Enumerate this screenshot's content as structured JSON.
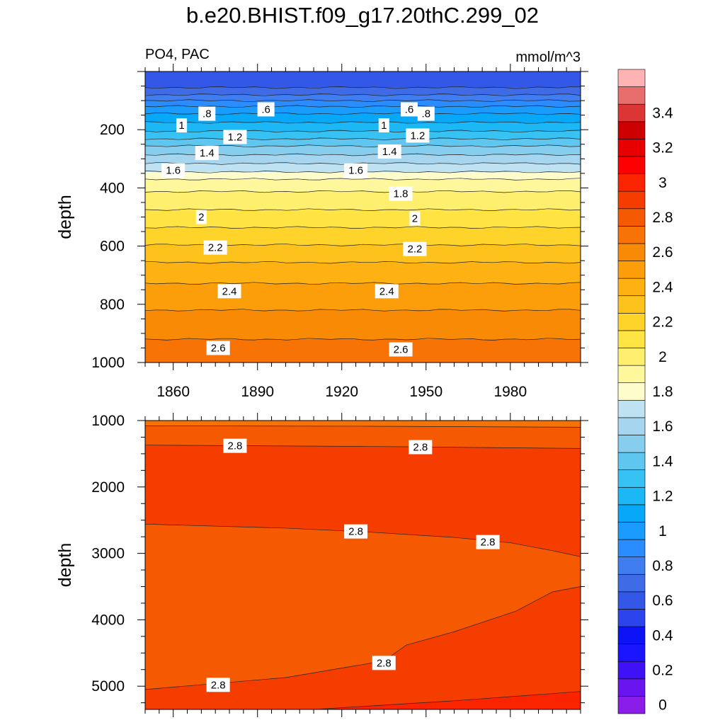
{
  "title": "b.e20.BHIST.f09_g17.20thC.299_02",
  "chart_data": {
    "type": "contour",
    "title": "b.e20.BHIST.f09_g17.20thC.299_02",
    "variable": "PO4, PAC",
    "units": "mmol/m^3",
    "x_ticks": [
      "1860",
      "1890",
      "1920",
      "1950",
      "1980"
    ],
    "x_tick_values": [
      1860,
      1890,
      1920,
      1950,
      1980
    ],
    "xlim": [
      1850,
      2005
    ],
    "colorbar": {
      "labels": [
        "0",
        "0.2",
        "0.4",
        "0.6",
        "0.8",
        "1",
        "1.2",
        "1.4",
        "1.6",
        "1.8",
        "2",
        "2.2",
        "2.4",
        "2.6",
        "2.8",
        "3",
        "3.2",
        "3.4"
      ],
      "label_values": [
        0,
        0.2,
        0.4,
        0.6,
        0.8,
        1.0,
        1.2,
        1.4,
        1.6,
        1.8,
        2.0,
        2.2,
        2.4,
        2.6,
        2.8,
        3.0,
        3.2,
        3.4
      ],
      "levels": [
        0,
        0.1,
        0.2,
        0.3,
        0.4,
        0.5,
        0.6,
        0.7,
        0.8,
        0.9,
        1.0,
        1.1,
        1.2,
        1.3,
        1.4,
        1.5,
        1.6,
        1.7,
        1.8,
        1.9,
        2.0,
        2.1,
        2.2,
        2.3,
        2.4,
        2.5,
        2.6,
        2.7,
        2.8,
        2.9,
        3.0,
        3.1,
        3.2,
        3.3,
        3.4,
        3.5
      ],
      "colors": [
        "#8a1ee8",
        "#6a15f0",
        "#3f12f6",
        "#1a14ff",
        "#0c14f6",
        "#2c44ec",
        "#3358e8",
        "#3f6be6",
        "#3f7df0",
        "#2a8cff",
        "#1a9cff",
        "#08a8f8",
        "#1cb8f6",
        "#36c2f2",
        "#5ec6ef",
        "#86cdee",
        "#a6d6ef",
        "#bfe2f2",
        "#fffccc",
        "#fff79c",
        "#ffef6e",
        "#ffe444",
        "#fed32a",
        "#fec21d",
        "#fdb112",
        "#fb9e0a",
        "#f98a06",
        "#f87305",
        "#f55a02",
        "#f63d00",
        "#fb2400",
        "#ff0000",
        "#e80000",
        "#cc0000",
        "#dc3535",
        "#e86e6e",
        "#ffb3b3"
      ]
    },
    "panels": [
      {
        "name": "upper",
        "ylabel": "depth",
        "ylim": [
          0,
          1000
        ],
        "inverted": true,
        "y_ticks": [
          "200",
          "400",
          "600",
          "800",
          "1000"
        ],
        "y_tick_values": [
          200,
          400,
          600,
          800,
          1000
        ],
        "profile_depth": [
          0,
          40,
          70,
          100,
          130,
          160,
          190,
          220,
          250,
          280,
          310,
          340,
          370,
          400,
          450,
          500,
          560,
          620,
          680,
          760,
          840,
          920,
          1000
        ],
        "profile_value": [
          0.5,
          0.55,
          0.65,
          0.8,
          0.95,
          1.05,
          1.15,
          1.25,
          1.38,
          1.48,
          1.58,
          1.68,
          1.8,
          1.88,
          1.96,
          2.04,
          2.14,
          2.24,
          2.34,
          2.44,
          2.52,
          2.6,
          2.64
        ],
        "contour_labels": [
          {
            "text": ".6",
            "year": 1893,
            "depth": 130
          },
          {
            "text": ".6",
            "year": 1944,
            "depth": 130
          },
          {
            "text": ".8",
            "year": 1872,
            "depth": 145
          },
          {
            "text": ".8",
            "year": 1950,
            "depth": 145
          },
          {
            "text": "1",
            "year": 1863,
            "depth": 185
          },
          {
            "text": "1",
            "year": 1935,
            "depth": 185
          },
          {
            "text": "1.2",
            "year": 1882,
            "depth": 225
          },
          {
            "text": "1.2",
            "year": 1947,
            "depth": 220
          },
          {
            "text": "1.4",
            "year": 1872,
            "depth": 280
          },
          {
            "text": "1.4",
            "year": 1937,
            "depth": 275
          },
          {
            "text": "1.6",
            "year": 1860,
            "depth": 340
          },
          {
            "text": "1.6",
            "year": 1925,
            "depth": 340
          },
          {
            "text": "1.8",
            "year": 1941,
            "depth": 420
          },
          {
            "text": "2",
            "year": 1870,
            "depth": 500
          },
          {
            "text": "2",
            "year": 1946,
            "depth": 505
          },
          {
            "text": "2.2",
            "year": 1875,
            "depth": 605
          },
          {
            "text": "2.2",
            "year": 1946,
            "depth": 610
          },
          {
            "text": "2.4",
            "year": 1880,
            "depth": 755
          },
          {
            "text": "2.4",
            "year": 1936,
            "depth": 755
          },
          {
            "text": "2.6",
            "year": 1876,
            "depth": 950
          },
          {
            "text": "2.6",
            "year": 1941,
            "depth": 955
          }
        ]
      },
      {
        "name": "lower",
        "ylabel": "depth",
        "ylim": [
          1000,
          5350
        ],
        "inverted": true,
        "y_ticks": [
          "1000",
          "2000",
          "3000",
          "4000",
          "5000"
        ],
        "y_tick_values": [
          1000,
          2000,
          3000,
          4000,
          5000
        ],
        "regions": [
          {
            "value": 2.65,
            "top": [
              [
                1850,
                1000
              ],
              [
                2005,
                1000
              ]
            ],
            "bottom": [
              [
                1850,
                1080
              ],
              [
                1930,
                1085
              ],
              [
                2005,
                1100
              ]
            ]
          },
          {
            "value": 2.75,
            "top": [
              [
                1850,
                1080
              ],
              [
                1930,
                1085
              ],
              [
                2005,
                1100
              ]
            ],
            "bottom": [
              [
                1850,
                1370
              ],
              [
                1930,
                1390
              ],
              [
                2005,
                1420
              ]
            ]
          },
          {
            "value": 2.85,
            "top": [
              [
                1850,
                1370
              ],
              [
                1930,
                1390
              ],
              [
                2005,
                1420
              ]
            ],
            "bottom": [
              [
                1850,
                2560
              ],
              [
                1900,
                2620
              ],
              [
                1930,
                2680
              ],
              [
                1960,
                2760
              ],
              [
                1980,
                2840
              ],
              [
                1995,
                2960
              ],
              [
                2005,
                3050
              ]
            ]
          },
          {
            "value": 2.75,
            "top": [
              [
                1850,
                2560
              ],
              [
                1900,
                2620
              ],
              [
                1930,
                2680
              ],
              [
                1960,
                2760
              ],
              [
                1980,
                2840
              ],
              [
                1995,
                2960
              ],
              [
                2005,
                3050
              ]
            ],
            "bottom": [
              [
                1850,
                5050
              ],
              [
                1900,
                4870
              ],
              [
                1935,
                4620
              ],
              [
                1943,
                4380
              ],
              [
                1960,
                4180
              ],
              [
                1982,
                3870
              ],
              [
                1995,
                3580
              ],
              [
                2005,
                3500
              ]
            ]
          },
          {
            "value": 2.85,
            "top": [
              [
                1850,
                5050
              ],
              [
                1900,
                4870
              ],
              [
                1935,
                4620
              ],
              [
                1943,
                4380
              ],
              [
                1960,
                4180
              ],
              [
                1982,
                3870
              ],
              [
                1995,
                3580
              ],
              [
                2005,
                3500
              ]
            ],
            "bottom": [
              [
                1850,
                5350
              ],
              [
                2005,
                5350
              ]
            ]
          },
          {
            "value": 2.95,
            "top": [
              [
                1910,
                5350
              ],
              [
                1960,
                5220
              ],
              [
                2005,
                5080
              ]
            ],
            "bottom": [
              [
                1910,
                5350
              ],
              [
                2005,
                5350
              ]
            ]
          }
        ],
        "contour_labels": [
          {
            "text": "2.8",
            "year": 1882,
            "depth": 1380
          },
          {
            "text": "2.8",
            "year": 1948,
            "depth": 1400
          },
          {
            "text": "2.8",
            "year": 1925,
            "depth": 2670
          },
          {
            "text": "2.8",
            "year": 1972,
            "depth": 2830
          },
          {
            "text": "2.8",
            "year": 1935,
            "depth": 4650
          },
          {
            "text": "2.8",
            "year": 1876,
            "depth": 4980
          }
        ]
      }
    ]
  }
}
